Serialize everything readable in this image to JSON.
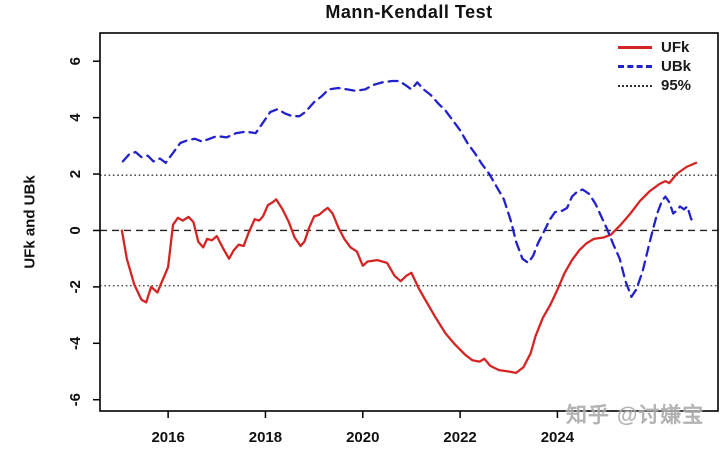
{
  "watermark": {
    "text": "知乎 @讨嫌宝",
    "color": "#ababab"
  },
  "chart_data": {
    "type": "line",
    "title": "Mann-Kendall Test",
    "xlabel": "",
    "ylabel": "UFk and UBk",
    "xlim": [
      2014.6,
      2027.3
    ],
    "ylim": [
      -6.4,
      7.0
    ],
    "x_ticks": [
      2016,
      2018,
      2020,
      2022,
      2024
    ],
    "y_ticks": [
      -6,
      -4,
      -2,
      0,
      2,
      4,
      6
    ],
    "grid": false,
    "legend_position": "top-right-inside",
    "frame_color": "#000000",
    "reference_lines": {
      "label": "95%",
      "zero": {
        "y": 0,
        "style": "dashed",
        "color": "#222222"
      },
      "conf_upper": {
        "y": 1.96,
        "style": "dotted",
        "color": "#333333"
      },
      "conf_lower": {
        "y": -1.96,
        "style": "dotted",
        "color": "#333333"
      }
    },
    "series": [
      {
        "name": "UFk",
        "color": "#d42525",
        "style": "solid",
        "points": [
          [
            2015.05,
            0
          ],
          [
            2015.15,
            -1.0
          ],
          [
            2015.3,
            -1.9
          ],
          [
            2015.45,
            -2.45
          ],
          [
            2015.55,
            -2.55
          ],
          [
            2015.65,
            -2.0
          ],
          [
            2015.78,
            -2.2
          ],
          [
            2015.9,
            -1.7
          ],
          [
            2016.0,
            -1.3
          ],
          [
            2016.1,
            0.2
          ],
          [
            2016.2,
            0.45
          ],
          [
            2016.3,
            0.35
          ],
          [
            2016.42,
            0.48
          ],
          [
            2016.52,
            0.3
          ],
          [
            2016.62,
            -0.4
          ],
          [
            2016.72,
            -0.6
          ],
          [
            2016.8,
            -0.3
          ],
          [
            2016.9,
            -0.35
          ],
          [
            2017.0,
            -0.2
          ],
          [
            2017.12,
            -0.6
          ],
          [
            2017.25,
            -1.0
          ],
          [
            2017.35,
            -0.7
          ],
          [
            2017.45,
            -0.5
          ],
          [
            2017.55,
            -0.55
          ],
          [
            2017.65,
            -0.1
          ],
          [
            2017.78,
            0.4
          ],
          [
            2017.87,
            0.35
          ],
          [
            2017.95,
            0.5
          ],
          [
            2018.05,
            0.9
          ],
          [
            2018.15,
            1.0
          ],
          [
            2018.22,
            1.1
          ],
          [
            2018.35,
            0.75
          ],
          [
            2018.48,
            0.3
          ],
          [
            2018.6,
            -0.25
          ],
          [
            2018.72,
            -0.55
          ],
          [
            2018.8,
            -0.4
          ],
          [
            2018.9,
            0.1
          ],
          [
            2019.0,
            0.5
          ],
          [
            2019.1,
            0.55
          ],
          [
            2019.2,
            0.7
          ],
          [
            2019.28,
            0.8
          ],
          [
            2019.38,
            0.6
          ],
          [
            2019.5,
            0.1
          ],
          [
            2019.62,
            -0.3
          ],
          [
            2019.75,
            -0.6
          ],
          [
            2019.88,
            -0.75
          ],
          [
            2020.0,
            -1.25
          ],
          [
            2020.1,
            -1.1
          ],
          [
            2020.3,
            -1.05
          ],
          [
            2020.5,
            -1.15
          ],
          [
            2020.65,
            -1.6
          ],
          [
            2020.78,
            -1.8
          ],
          [
            2020.9,
            -1.6
          ],
          [
            2021.0,
            -1.5
          ],
          [
            2021.15,
            -2.05
          ],
          [
            2021.3,
            -2.5
          ],
          [
            2021.5,
            -3.1
          ],
          [
            2021.7,
            -3.65
          ],
          [
            2021.9,
            -4.05
          ],
          [
            2022.1,
            -4.4
          ],
          [
            2022.25,
            -4.6
          ],
          [
            2022.4,
            -4.65
          ],
          [
            2022.5,
            -4.55
          ],
          [
            2022.62,
            -4.8
          ],
          [
            2022.8,
            -4.95
          ],
          [
            2023.0,
            -5.0
          ],
          [
            2023.15,
            -5.05
          ],
          [
            2023.3,
            -4.85
          ],
          [
            2023.45,
            -4.35
          ],
          [
            2023.55,
            -3.75
          ],
          [
            2023.7,
            -3.1
          ],
          [
            2023.85,
            -2.65
          ],
          [
            2024.0,
            -2.1
          ],
          [
            2024.15,
            -1.5
          ],
          [
            2024.3,
            -1.05
          ],
          [
            2024.45,
            -0.7
          ],
          [
            2024.6,
            -0.45
          ],
          [
            2024.75,
            -0.3
          ],
          [
            2024.95,
            -0.25
          ],
          [
            2025.1,
            -0.15
          ],
          [
            2025.3,
            0.2
          ],
          [
            2025.5,
            0.6
          ],
          [
            2025.7,
            1.05
          ],
          [
            2025.9,
            1.4
          ],
          [
            2026.1,
            1.65
          ],
          [
            2026.22,
            1.75
          ],
          [
            2026.3,
            1.68
          ],
          [
            2026.45,
            2.0
          ],
          [
            2026.65,
            2.25
          ],
          [
            2026.85,
            2.4
          ]
        ]
      },
      {
        "name": "UBk",
        "color": "#2222cc",
        "style": "dashed",
        "points": [
          [
            2015.07,
            2.45
          ],
          [
            2015.2,
            2.7
          ],
          [
            2015.33,
            2.78
          ],
          [
            2015.45,
            2.6
          ],
          [
            2015.58,
            2.65
          ],
          [
            2015.7,
            2.45
          ],
          [
            2015.83,
            2.55
          ],
          [
            2015.95,
            2.4
          ],
          [
            2016.1,
            2.75
          ],
          [
            2016.25,
            3.1
          ],
          [
            2016.4,
            3.2
          ],
          [
            2016.55,
            3.25
          ],
          [
            2016.7,
            3.15
          ],
          [
            2016.85,
            3.25
          ],
          [
            2017.0,
            3.35
          ],
          [
            2017.2,
            3.3
          ],
          [
            2017.4,
            3.45
          ],
          [
            2017.6,
            3.5
          ],
          [
            2017.8,
            3.45
          ],
          [
            2017.9,
            3.7
          ],
          [
            2018.1,
            4.2
          ],
          [
            2018.25,
            4.3
          ],
          [
            2018.4,
            4.15
          ],
          [
            2018.55,
            4.05
          ],
          [
            2018.7,
            4.05
          ],
          [
            2018.82,
            4.2
          ],
          [
            2019.0,
            4.55
          ],
          [
            2019.15,
            4.75
          ],
          [
            2019.3,
            5.0
          ],
          [
            2019.5,
            5.05
          ],
          [
            2019.68,
            5.0
          ],
          [
            2019.85,
            4.95
          ],
          [
            2020.05,
            5.0
          ],
          [
            2020.2,
            5.15
          ],
          [
            2020.4,
            5.25
          ],
          [
            2020.6,
            5.3
          ],
          [
            2020.75,
            5.3
          ],
          [
            2020.88,
            5.15
          ],
          [
            2021.0,
            5.0
          ],
          [
            2021.12,
            5.25
          ],
          [
            2021.25,
            5.0
          ],
          [
            2021.4,
            4.8
          ],
          [
            2021.55,
            4.5
          ],
          [
            2021.7,
            4.25
          ],
          [
            2021.85,
            3.9
          ],
          [
            2022.0,
            3.55
          ],
          [
            2022.15,
            3.1
          ],
          [
            2022.3,
            2.75
          ],
          [
            2022.45,
            2.35
          ],
          [
            2022.6,
            2.0
          ],
          [
            2022.75,
            1.55
          ],
          [
            2022.9,
            1.1
          ],
          [
            2023.05,
            0.3
          ],
          [
            2023.15,
            -0.4
          ],
          [
            2023.28,
            -1.0
          ],
          [
            2023.4,
            -1.15
          ],
          [
            2023.5,
            -0.9
          ],
          [
            2023.6,
            -0.45
          ],
          [
            2023.72,
            -0.05
          ],
          [
            2023.85,
            0.4
          ],
          [
            2023.95,
            0.65
          ],
          [
            2024.1,
            0.7
          ],
          [
            2024.2,
            0.8
          ],
          [
            2024.3,
            1.2
          ],
          [
            2024.42,
            1.4
          ],
          [
            2024.52,
            1.45
          ],
          [
            2024.65,
            1.3
          ],
          [
            2024.78,
            0.95
          ],
          [
            2024.9,
            0.5
          ],
          [
            2025.02,
            0.05
          ],
          [
            2025.15,
            -0.5
          ],
          [
            2025.28,
            -1.0
          ],
          [
            2025.4,
            -1.8
          ],
          [
            2025.52,
            -2.35
          ],
          [
            2025.62,
            -2.1
          ],
          [
            2025.75,
            -1.45
          ],
          [
            2025.85,
            -0.75
          ],
          [
            2025.95,
            -0.05
          ],
          [
            2026.05,
            0.6
          ],
          [
            2026.15,
            1.05
          ],
          [
            2026.22,
            1.2
          ],
          [
            2026.3,
            1.0
          ],
          [
            2026.38,
            0.6
          ],
          [
            2026.45,
            0.7
          ],
          [
            2026.52,
            0.85
          ],
          [
            2026.6,
            0.75
          ],
          [
            2026.67,
            0.85
          ],
          [
            2026.75,
            0.4
          ],
          [
            2026.82,
            0.3
          ]
        ]
      }
    ]
  }
}
